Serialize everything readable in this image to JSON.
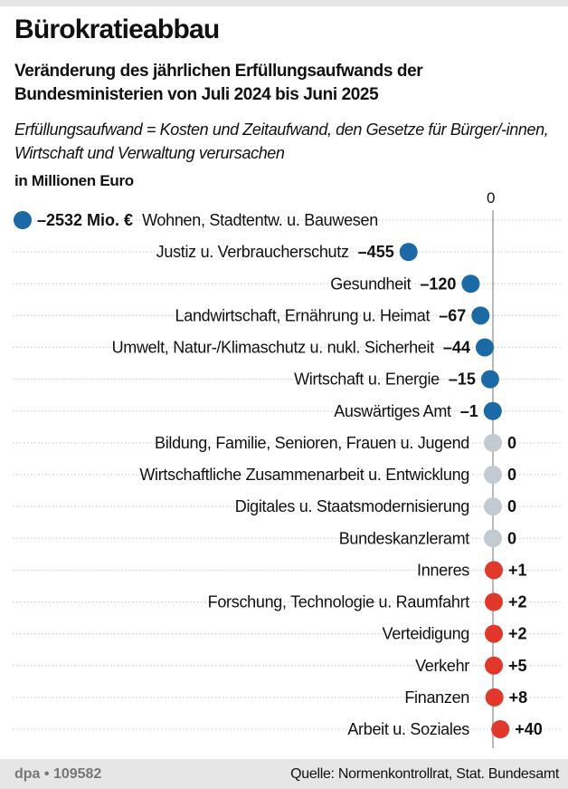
{
  "header": {
    "title": "Bürokratieabbau",
    "subtitle": "Veränderung des jährlichen Erfüllungsaufwands der Bundesministerien von Juli 2024 bis Juni 2025",
    "description": "Erfüllungsaufwand = Kosten und Zeitaufwand, den Gesetze für Bürger/-innen, Wirtschaft und Verwaltung verursachen",
    "unit": "in Millionen Euro"
  },
  "chart_data": {
    "type": "scatter",
    "orientation": "horizontal dot plot",
    "zero_label": "0",
    "axis_break": "first value (−2532) shown at left edge, not to scale",
    "grid": "dotted horizontal row lines",
    "colors": {
      "negative": "#1b6aa5",
      "zero": "#c3cad2",
      "positive": "#e0392b",
      "axis": "#b8b8b8"
    },
    "categories": [
      "Wohnen, Stadtentw. u. Bauwesen",
      "Justiz u. Verbraucherschutz",
      "Gesundheit",
      "Landwirtschaft, Ernährung u. Heimat",
      "Umwelt, Natur-/Klimaschutz u. nukl. Sicherheit",
      "Wirtschaft u. Energie",
      "Auswärtiges Amt",
      "Bildung, Familie, Senioren, Frauen u. Jugend",
      "Wirtschaftliche Zusammenarbeit u. Entwicklung",
      "Digitales u. Staatsmodernisierung",
      "Bundeskanzleramt",
      "Inneres",
      "Forschung, Technologie u. Raumfahrt",
      "Verteidigung",
      "Verkehr",
      "Finanzen",
      "Arbeit u. Soziales"
    ],
    "values": [
      -2532,
      -455,
      -120,
      -67,
      -44,
      -15,
      -1,
      0,
      0,
      0,
      0,
      1,
      2,
      2,
      5,
      8,
      40
    ],
    "value_labels": [
      "–2532 Mio. €",
      "–455",
      "–120",
      "–67",
      "–44",
      "–15",
      "–1",
      "0",
      "0",
      "0",
      "0",
      "+1",
      "+2",
      "+2",
      "+5",
      "+8",
      "+40"
    ]
  },
  "footer": {
    "credit": "dpa • 109582",
    "source": "Quelle: Normenkontrollrat, Stat. Bundesamt"
  }
}
